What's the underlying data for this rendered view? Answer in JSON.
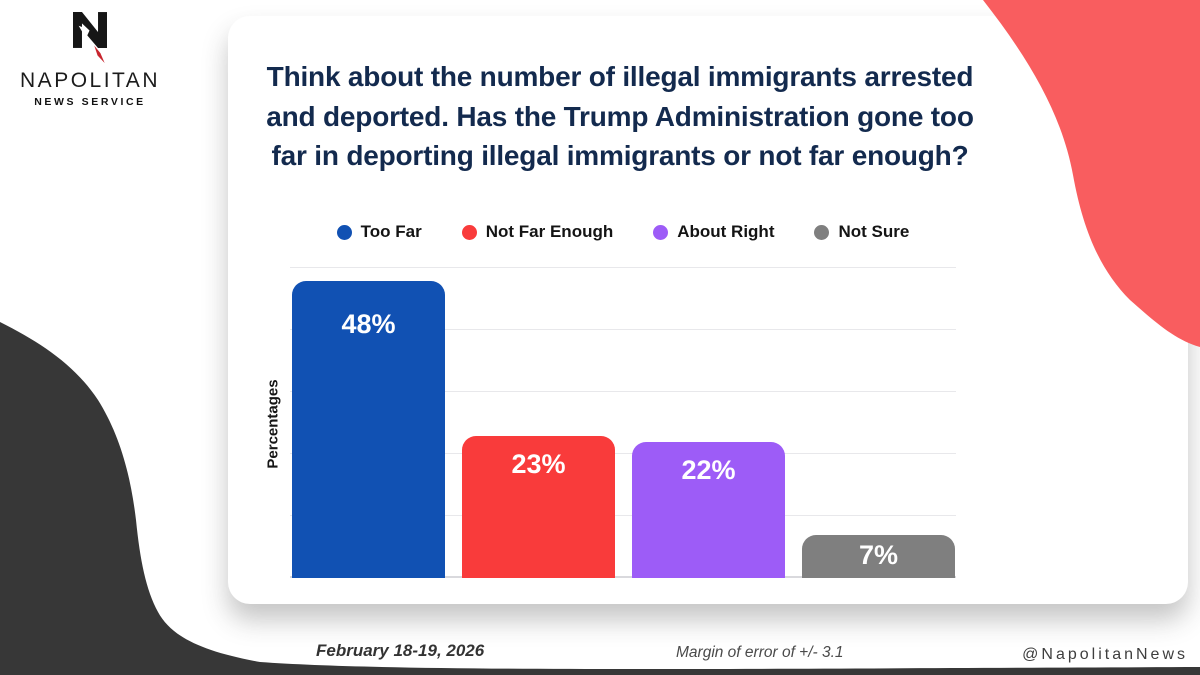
{
  "brand": {
    "logo_icon": "napolitan-eagle-n-logo",
    "name": "NAPOLITAN",
    "tagline": "NEWS SERVICE"
  },
  "title": {
    "full": "Think about the number of illegal immigrants arrested and deported. Has the Trump Administration gone too far in deporting illegal immigrants or not far enough?",
    "lines": [
      "Think about the number of illegal immigrants arrested",
      "and deported. Has the Trump Administration gone too",
      "far in deporting illegal immigrants or not far enough?"
    ]
  },
  "chart_data": {
    "type": "bar",
    "title": "Think about the number of illegal immigrants arrested and deported. Has the Trump Administration gone too far in deporting illegal immigrants or not far enough?",
    "categories": [
      "Too Far",
      "Not Far Enough",
      "About Right",
      "Not Sure"
    ],
    "values": [
      48,
      23,
      22,
      7
    ],
    "value_labels": [
      "48%",
      "23%",
      "22%",
      "7%"
    ],
    "colors": [
      "#1151b3",
      "#f93b3b",
      "#9d5cf7",
      "#7f7f7f"
    ],
    "xlabel": "",
    "ylabel": "Percentages",
    "ylim": [
      0,
      50
    ],
    "yticks": [
      0,
      10,
      20,
      30,
      40,
      50
    ],
    "grid": true,
    "legend_position": "top",
    "bar_label_color": "#ffffff"
  },
  "footer": {
    "date": "February 18-19, 2026",
    "margin_of_error": "Margin of error of +/- 3.1",
    "handle": "@NapolitanNews"
  },
  "theme": {
    "background": "#ffffff",
    "title_color": "#132a4e",
    "blob_red": "#f95d5f",
    "blob_dark": "#373737",
    "gridline": "#e8e8eb"
  }
}
